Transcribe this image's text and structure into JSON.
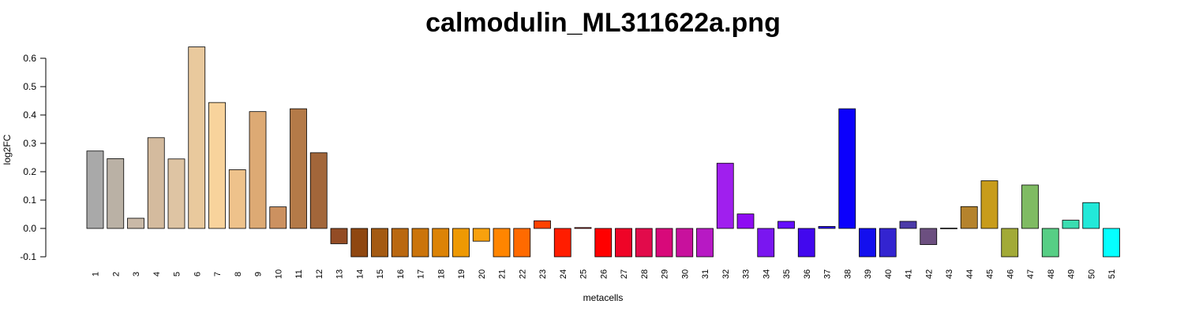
{
  "chart_data": {
    "type": "bar",
    "title": "calmodulin_ML311622a.png",
    "xlabel": "metacells",
    "ylabel": "log2FC",
    "ylim": [
      -0.1,
      0.64
    ],
    "yticks": [
      "-0.1",
      "0.0",
      "0.1",
      "0.2",
      "0.3",
      "0.4",
      "0.5",
      "0.6"
    ],
    "grid": false,
    "categories": [
      "1",
      "2",
      "3",
      "4",
      "5",
      "6",
      "7",
      "8",
      "9",
      "10",
      "11",
      "12",
      "13",
      "14",
      "15",
      "16",
      "17",
      "18",
      "19",
      "20",
      "21",
      "22",
      "23",
      "24",
      "25",
      "26",
      "27",
      "28",
      "29",
      "30",
      "31",
      "32",
      "33",
      "34",
      "35",
      "36",
      "37",
      "38",
      "39",
      "40",
      "41",
      "42",
      "43",
      "44",
      "45",
      "46",
      "47",
      "48",
      "49",
      "50",
      "51"
    ],
    "values": [
      0.273,
      0.246,
      0.036,
      0.32,
      0.245,
      0.64,
      0.444,
      0.207,
      0.412,
      0.076,
      0.422,
      0.267,
      -0.054,
      -0.1,
      -0.1,
      -0.1,
      -0.1,
      -0.1,
      -0.1,
      -0.045,
      -0.1,
      -0.1,
      0.027,
      -0.1,
      0.003,
      -0.1,
      -0.1,
      -0.1,
      -0.1,
      -0.1,
      -0.1,
      0.23,
      0.051,
      -0.1,
      0.025,
      -0.1,
      0.007,
      0.422,
      -0.1,
      -0.1,
      0.025,
      -0.057,
      0.001,
      0.077,
      0.168,
      -0.1,
      0.153,
      -0.1,
      0.029,
      0.091,
      -0.1
    ],
    "colors": [
      "#A9A9A9",
      "#BAB1A5",
      "#C9B9A7",
      "#D4BB9E",
      "#DEC4A3",
      "#E9C99D",
      "#F8D39C",
      "#EEC28B",
      "#DDAA74",
      "#CC9160",
      "#B47A48",
      "#A2663A",
      "#934C25",
      "#8F4710",
      "#A45A12",
      "#BA6810",
      "#CB740A",
      "#DC8306",
      "#EE9903",
      "#F8A10D",
      "#FF8500",
      "#FF6A00",
      "#FF4200",
      "#FF1D00",
      "#F60603",
      "#FF0000",
      "#EF0427",
      "#E20B4B",
      "#D8097A",
      "#C8119D",
      "#B719C4",
      "#A01FEE",
      "#8E0CF3",
      "#7A16F0",
      "#6510FC",
      "#4208EE",
      "#2A10F2",
      "#0C00FC",
      "#130FEE",
      "#3324D0",
      "#4B3AA8",
      "#6C4F80",
      "#8D7A82",
      "#B5832D",
      "#C89C1B",
      "#A2AA37",
      "#7FBB63",
      "#57CE85",
      "#3BDDB1",
      "#22E9D9",
      "#05FFFF"
    ]
  }
}
